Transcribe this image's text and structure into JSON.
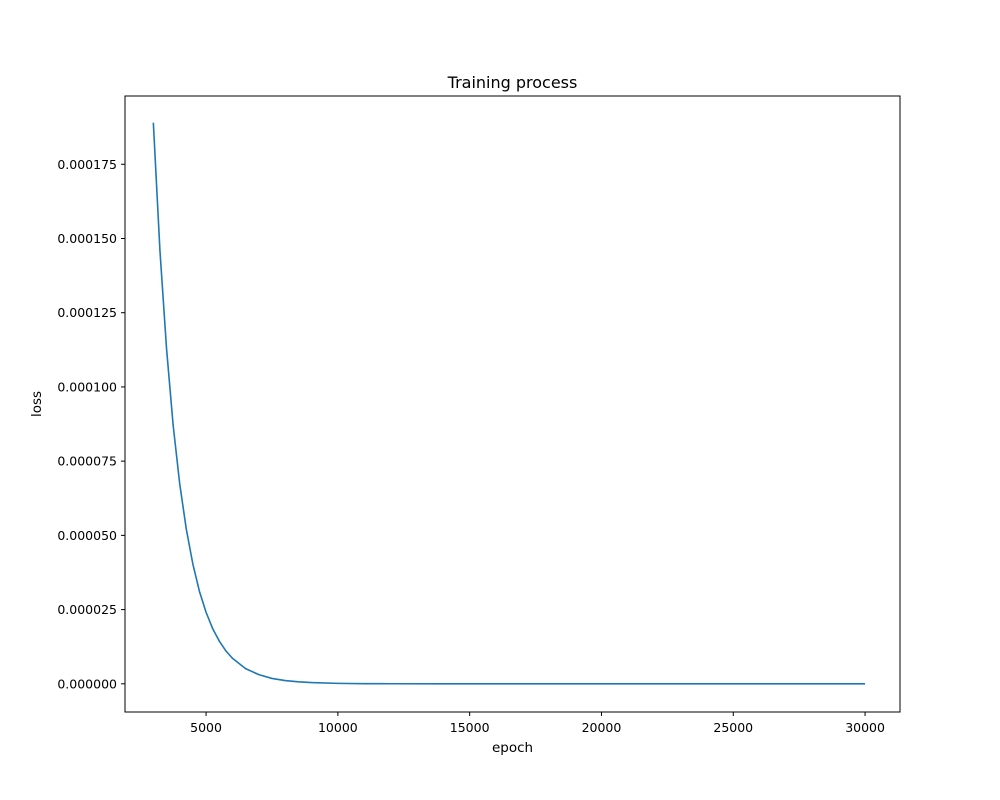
{
  "chart_data": {
    "type": "line",
    "title": "Training process",
    "xlabel": "epoch",
    "ylabel": "loss",
    "xlim": [
      1925,
      31325
    ],
    "ylim": [
      -9.5e-06,
      0.000198
    ],
    "x_ticks": [
      5000,
      10000,
      15000,
      20000,
      25000,
      30000
    ],
    "x_tick_labels": [
      "5000",
      "10000",
      "15000",
      "20000",
      "25000",
      "30000"
    ],
    "y_ticks": [
      0,
      2.5e-05,
      5e-05,
      7.5e-05,
      0.0001,
      0.000125,
      0.00015,
      0.000175
    ],
    "y_tick_labels": [
      "0.000000",
      "0.000025",
      "0.000050",
      "0.000075",
      "0.000100",
      "0.000125",
      "0.000150",
      "0.000175"
    ],
    "grid": false,
    "legend": "none",
    "series": [
      {
        "color": "#1f77b4",
        "x": [
          3000,
          3250,
          3500,
          3750,
          4000,
          4250,
          4500,
          4750,
          5000,
          5250,
          5500,
          5750,
          6000,
          6500,
          7000,
          7500,
          8000,
          8500,
          9000,
          10000,
          11000,
          12000,
          14000,
          16000,
          18000,
          20000,
          22000,
          24000,
          26000,
          28000,
          30000
        ],
        "y": [
          0.000189,
          0.000146,
          0.000113,
          8.72e-05,
          6.74e-05,
          5.21e-05,
          4.03e-05,
          3.11e-05,
          2.41e-05,
          1.86e-05,
          1.44e-05,
          1.11e-05,
          8.6e-06,
          5.1e-06,
          3.1e-06,
          1.8e-06,
          1.1e-06,
          6.6e-07,
          4e-07,
          1.4e-07,
          5e-08,
          2e-08,
          0.0,
          0.0,
          0.0,
          0.0,
          0.0,
          0.0,
          0.0,
          0.0,
          0.0
        ]
      }
    ]
  }
}
